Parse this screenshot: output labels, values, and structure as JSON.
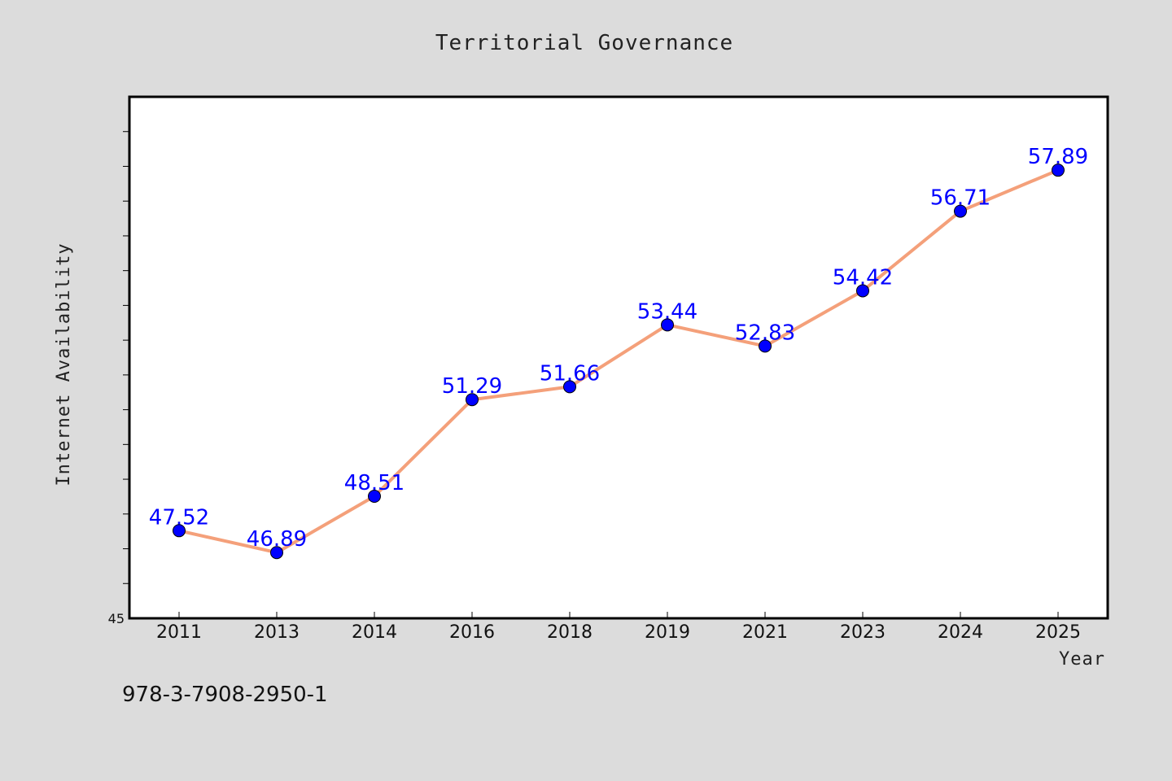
{
  "chart_data": {
    "type": "line",
    "title": "Territorial Governance",
    "xlabel": "Year",
    "ylabel": "Internet Availability",
    "categories": [
      "2011",
      "2013",
      "2014",
      "2016",
      "2018",
      "2019",
      "2021",
      "2023",
      "2024",
      "2025"
    ],
    "series": [
      {
        "values": [
          47.52,
          46.89,
          48.51,
          51.29,
          51.66,
          53.44,
          52.83,
          54.42,
          56.71,
          57.89
        ],
        "labels": [
          "47.52",
          "46.89",
          "48.51",
          "51.29",
          "51.66",
          "53.44",
          "52.83",
          "54.42",
          "56.71",
          "57.89"
        ],
        "line_color": "#f4a07a",
        "marker_color": "#0000ff"
      }
    ],
    "ylim": [
      45,
      60
    ],
    "y_tick_labels": [
      "45"
    ],
    "grid": false,
    "legend": "none"
  },
  "footer": {
    "code": "978-3-7908-2950-1"
  },
  "colors": {
    "background": "#dcdcdc",
    "plot_background": "#ffffff",
    "frame": "#000000"
  }
}
